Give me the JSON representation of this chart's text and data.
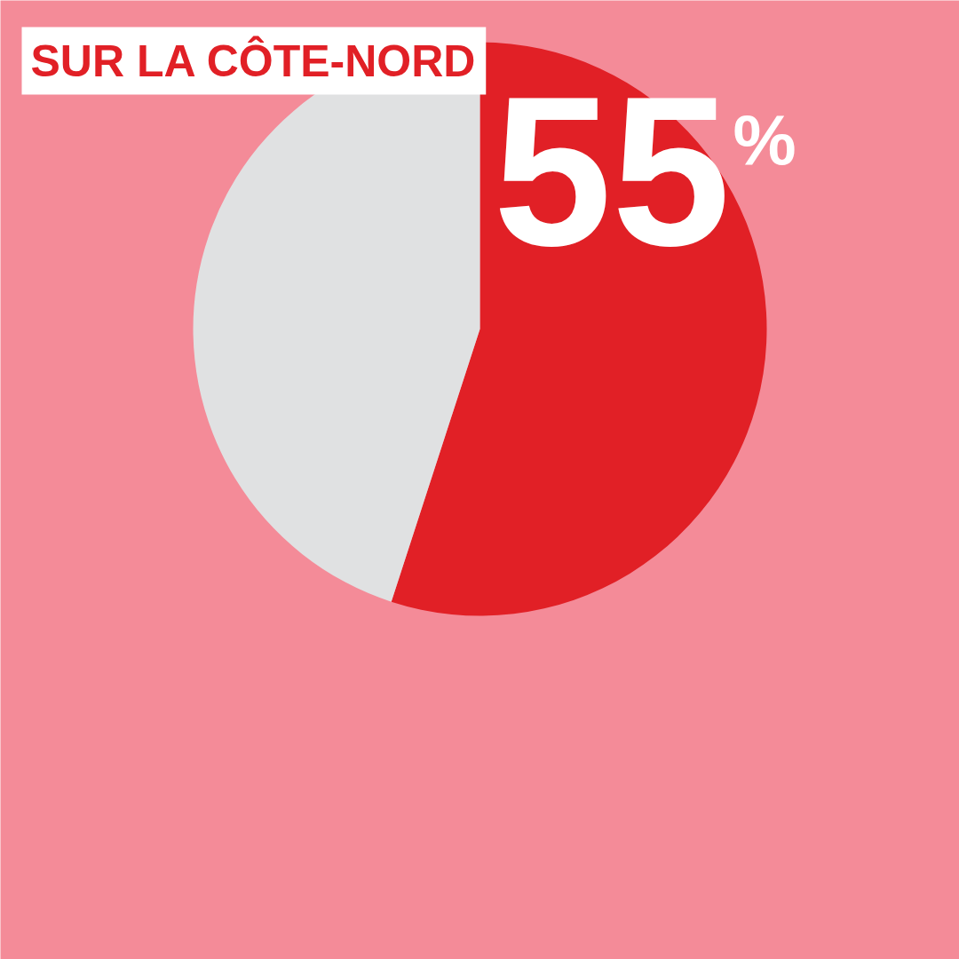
{
  "chart_data": {
    "type": "pie",
    "title": "SUR LA CÔTE-NORD",
    "categories": [
      null,
      null
    ],
    "values": [
      55,
      45
    ],
    "colors": [
      "#e12026",
      "#e0e1e2"
    ],
    "value_labels": [
      "55%",
      null
    ]
  }
}
